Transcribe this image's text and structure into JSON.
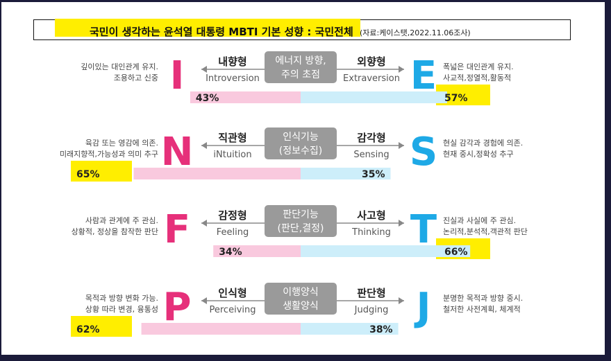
{
  "title": "국민이 생각하는 윤석열 대통령 MBTI 기본 성향 : 국민전체",
  "source": "(자료:케이스탯,2022.11.06조사)",
  "colors": {
    "left_bar": "#f9c9de",
    "right_bar": "#cdeefa",
    "left_letter": "#e6307a",
    "right_letter": "#1ea9e6",
    "center_box": "#9a9a9a",
    "highlight": "#ffee00",
    "axis_text": "#555555"
  },
  "chart_data": {
    "type": "bar",
    "title": "국민이 생각하는 윤석열 대통령 MBTI 기본 성향 : 국민전체",
    "xlim": [
      0,
      100
    ],
    "rows": [
      {
        "left_letter": "I",
        "right_letter": "E",
        "left_type": "내향형",
        "left_en": "Introversion",
        "right_type": "외향형",
        "right_en": "Extraversion",
        "center": [
          "에너지 방향,",
          "주의 초점"
        ],
        "left_desc": [
          "깊이있는 대인관계 유지.",
          "조용하고 신중"
        ],
        "right_desc": [
          "폭넓은 대인관계 유지.",
          "사교적,정열적,활동적"
        ],
        "left_value": 43,
        "right_value": 57,
        "left_label": "43%",
        "right_label": "57%",
        "highlight": "right"
      },
      {
        "left_letter": "N",
        "right_letter": "S",
        "left_type": "직관형",
        "left_en": "iNtuition",
        "right_type": "감각형",
        "right_en": "Sensing",
        "center": [
          "인식기능",
          "(정보수집)"
        ],
        "left_desc": [
          "육감 또는 영감에 의존.",
          "미래지향적,가능성과 의미 추구"
        ],
        "right_desc": [
          "현실 감각과 경험에 의존.",
          "현재 중시,정확성 추구"
        ],
        "left_value": 65,
        "right_value": 35,
        "left_label": "65%",
        "right_label": "35%",
        "highlight": "left"
      },
      {
        "left_letter": "F",
        "right_letter": "T",
        "left_type": "감정형",
        "left_en": "Feeling",
        "right_type": "사고형",
        "right_en": "Thinking",
        "center": [
          "판단기능",
          "(판단,결정)"
        ],
        "left_desc": [
          "사람과 관계에 주 관심.",
          "상황적, 정상을 참작한 판단"
        ],
        "right_desc": [
          "진실과 사실에 주 관심.",
          "논리적,분석적,객관적 판단"
        ],
        "left_value": 34,
        "right_value": 66,
        "left_label": "34%",
        "right_label": "66%",
        "highlight": "right"
      },
      {
        "left_letter": "P",
        "right_letter": "J",
        "left_type": "인식형",
        "left_en": "Perceiving",
        "right_type": "판단형",
        "right_en": "Judging",
        "center": [
          "이행양식",
          "생활양식"
        ],
        "left_desc": [
          "목적과 방향 변화 가능.",
          "상황 따라 변경, 융통성"
        ],
        "right_desc": [
          "분명한 목적과 방향 중시.",
          "철저한 사전계획, 체계적"
        ],
        "left_value": 62,
        "right_value": 38,
        "left_label": "62%",
        "right_label": "38%",
        "highlight": "left"
      }
    ]
  }
}
